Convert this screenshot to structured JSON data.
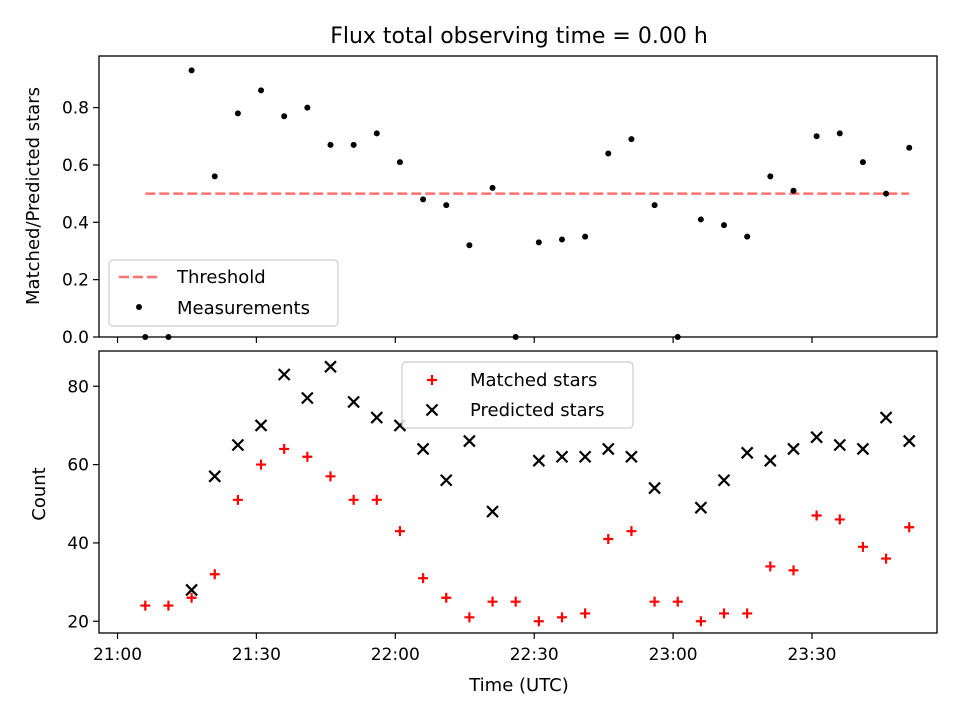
{
  "chart_data": [
    {
      "type": "scatter",
      "title": "Flux total observing time = 0.00 h",
      "xlabel": "",
      "ylabel": "Matched/Predicted stars",
      "ylim": [
        0,
        0.98
      ],
      "yticks": [
        0.0,
        0.2,
        0.4,
        0.6,
        0.8
      ],
      "ytick_labels": [
        "0.0",
        "0.2",
        "0.4",
        "0.6",
        "0.8"
      ],
      "xlim": [
        "20:56",
        "23:57"
      ],
      "grid": false,
      "legend_position": "lower-left",
      "series": [
        {
          "name": "Threshold",
          "kind": "dashed-line",
          "color": "#ff7070",
          "x": [
            "21:06",
            "23:51"
          ],
          "y": [
            0.5,
            0.5
          ]
        },
        {
          "name": "Measurements",
          "kind": "dot",
          "color": "#000000",
          "x": [
            "21:06",
            "21:11",
            "21:16",
            "21:21",
            "21:26",
            "21:31",
            "21:36",
            "21:41",
            "21:46",
            "21:51",
            "21:56",
            "22:01",
            "22:06",
            "22:11",
            "22:16",
            "22:21",
            "22:26",
            "22:31",
            "22:36",
            "22:41",
            "22:46",
            "22:51",
            "22:56",
            "23:01",
            "23:06",
            "23:11",
            "23:16",
            "23:21",
            "23:26",
            "23:31",
            "23:36",
            "23:41",
            "23:46",
            "23:51"
          ],
          "y": [
            0.0,
            0.0,
            0.93,
            0.56,
            0.78,
            0.86,
            0.77,
            0.8,
            0.67,
            0.67,
            0.71,
            0.61,
            0.48,
            0.46,
            0.32,
            0.52,
            0.0,
            0.33,
            0.34,
            0.35,
            0.64,
            0.69,
            0.46,
            0.0,
            0.41,
            0.39,
            0.35,
            0.56,
            0.51,
            0.7,
            0.71,
            0.61,
            0.5,
            0.66
          ]
        }
      ]
    },
    {
      "type": "scatter",
      "title": "",
      "xlabel": "Time (UTC)",
      "ylabel": "Count",
      "ylim": [
        17,
        89
      ],
      "yticks": [
        20,
        40,
        60,
        80
      ],
      "ytick_labels": [
        "20",
        "40",
        "60",
        "80"
      ],
      "xlim": [
        "20:56",
        "23:57"
      ],
      "xticks": [
        "21:00",
        "21:30",
        "22:00",
        "22:30",
        "23:00",
        "23:30"
      ],
      "xtick_labels": [
        "21:00",
        "21:30",
        "22:00",
        "22:30",
        "23:00",
        "23:30"
      ],
      "grid": false,
      "legend_position": "top-center",
      "series": [
        {
          "name": "Matched stars",
          "kind": "plus",
          "color": "#ff0000",
          "x": [
            "21:06",
            "21:11",
            "21:16",
            "21:21",
            "21:26",
            "21:31",
            "21:36",
            "21:41",
            "21:46",
            "21:51",
            "21:56",
            "22:01",
            "22:06",
            "22:11",
            "22:16",
            "22:21",
            "22:26",
            "22:31",
            "22:36",
            "22:41",
            "22:46",
            "22:51",
            "22:56",
            "23:01",
            "23:06",
            "23:11",
            "23:16",
            "23:21",
            "23:26",
            "23:31",
            "23:36",
            "23:41",
            "23:46",
            "23:51"
          ],
          "y": [
            24,
            24,
            26,
            32,
            51,
            60,
            64,
            62,
            57,
            51,
            51,
            43,
            31,
            26,
            21,
            25,
            25,
            20,
            21,
            22,
            41,
            43,
            25,
            25,
            20,
            22,
            22,
            34,
            33,
            47,
            46,
            39,
            36,
            44
          ]
        },
        {
          "name": "Predicted stars",
          "kind": "x",
          "color": "#000000",
          "x": [
            "21:16",
            "21:21",
            "21:26",
            "21:31",
            "21:36",
            "21:41",
            "21:46",
            "21:51",
            "21:56",
            "22:01",
            "22:06",
            "22:11",
            "22:16",
            "22:21",
            "22:31",
            "22:36",
            "22:41",
            "22:46",
            "22:51",
            "22:56",
            "23:06",
            "23:11",
            "23:16",
            "23:21",
            "23:26",
            "23:31",
            "23:36",
            "23:41",
            "23:46",
            "23:51"
          ],
          "y": [
            28,
            57,
            65,
            70,
            83,
            77,
            85,
            76,
            72,
            70,
            64,
            56,
            66,
            48,
            61,
            62,
            62,
            64,
            62,
            54,
            49,
            56,
            63,
            61,
            64,
            67,
            65,
            64,
            72,
            66
          ]
        }
      ]
    }
  ]
}
